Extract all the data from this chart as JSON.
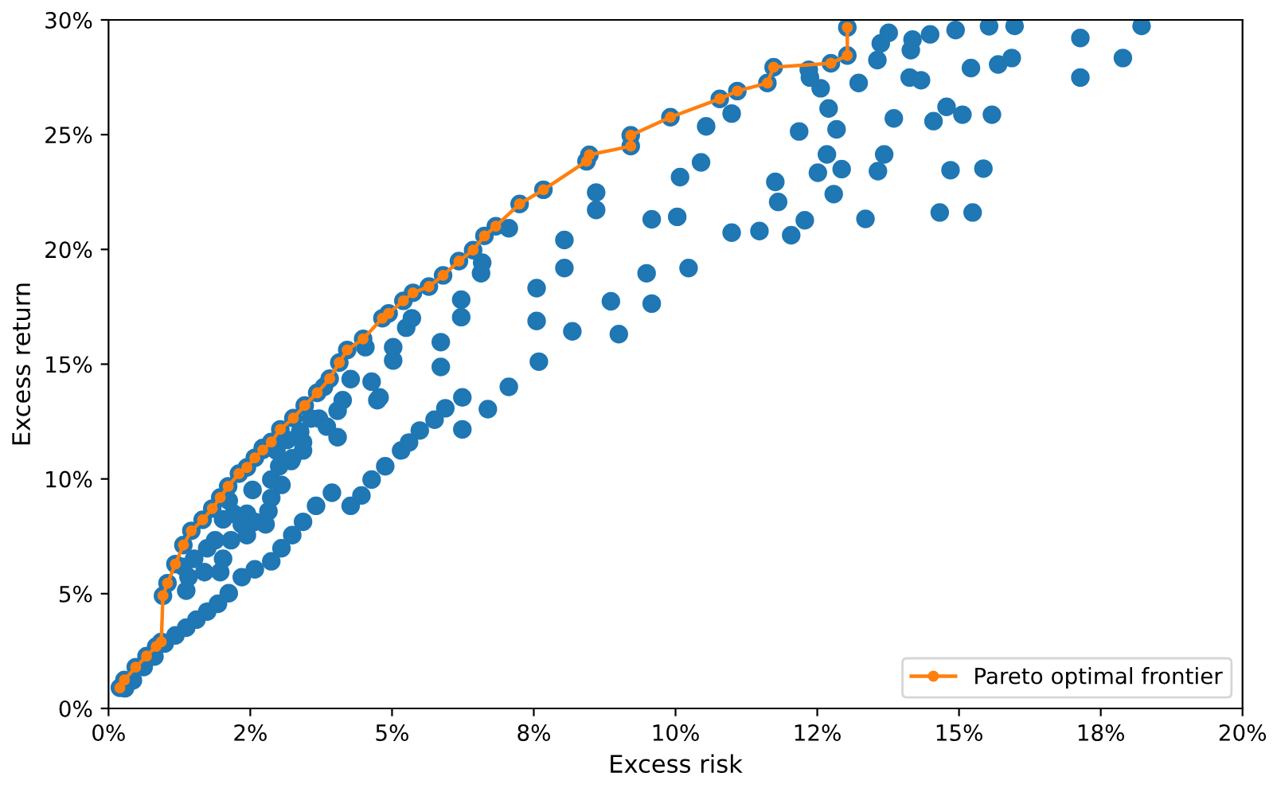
{
  "chart_data": {
    "type": "scatter",
    "xlabel": "Excess risk",
    "ylabel": "Excess return",
    "xlim": [
      0,
      20
    ],
    "ylim": [
      0,
      30
    ],
    "xticks": [
      {
        "value": 0,
        "label": "0%"
      },
      {
        "value": 2.5,
        "label": "2%"
      },
      {
        "value": 5,
        "label": "5%"
      },
      {
        "value": 7.5,
        "label": "8%"
      },
      {
        "value": 10,
        "label": "10%"
      },
      {
        "value": 12.5,
        "label": "12%"
      },
      {
        "value": 15,
        "label": "15%"
      },
      {
        "value": 17.5,
        "label": "18%"
      },
      {
        "value": 20,
        "label": "20%"
      }
    ],
    "yticks": [
      {
        "value": 0,
        "label": "0%"
      },
      {
        "value": 5,
        "label": "5%"
      },
      {
        "value": 10,
        "label": "10%"
      },
      {
        "value": 15,
        "label": "15%"
      },
      {
        "value": 20,
        "label": "20%"
      },
      {
        "value": 25,
        "label": "25%"
      },
      {
        "value": 30,
        "label": "30%"
      }
    ],
    "grid": false,
    "legend": "bottom right",
    "series": [
      {
        "color": "#1f77b4",
        "marker": "circle",
        "x": [
          0.29,
          0.43,
          0.62,
          0.81,
          0.99,
          1.18,
          1.37,
          1.55,
          1.74,
          1.93,
          2.12,
          2.35,
          2.58,
          2.87,
          3.05,
          3.24,
          3.43,
          3.66,
          3.94,
          4.27,
          4.46,
          4.64,
          4.88,
          5.16,
          5.3,
          5.49,
          5.75,
          5.94,
          6.24,
          6.24,
          6.69,
          7.06,
          7.59,
          7.55,
          8.18,
          8.04,
          9.0,
          8.86,
          9.58,
          9.49,
          10.23,
          1.37,
          1.41,
          1.32,
          1.51,
          1.74,
          1.88,
          2.02,
          1.97,
          1.69,
          2.16,
          2.35,
          2.21,
          2.44,
          2.58,
          2.44,
          2.82,
          2.77,
          2.87,
          3.05,
          2.54,
          2.12,
          2.02,
          3.24,
          3.15,
          3.43,
          3.38,
          3.71,
          4.04,
          4.04,
          3.8,
          4.13,
          4.27,
          4.64,
          4.74,
          2.87,
          3.01,
          2.72,
          2.96,
          3.57,
          3.85,
          3.43,
          3.22,
          4.53,
          5.02,
          5.02,
          4.78,
          5.25,
          5.35,
          5.86,
          5.86,
          6.22,
          6.22,
          6.57,
          6.59,
          7.06,
          7.55,
          8.6,
          8.6,
          8.04,
          9.58,
          10.03,
          10.08,
          10.45,
          10.54,
          10.99,
          10.99,
          11.48,
          11.76,
          11.81,
          12.04,
          12.28,
          12.35,
          12.37,
          12.56,
          13.23,
          12.7,
          12.84,
          12.18,
          12.67,
          12.51,
          12.93,
          12.79,
          13.35,
          13.56,
          13.62,
          13.76,
          14.15,
          14.18,
          14.13,
          14.33,
          14.49,
          14.94,
          15.53,
          15.98,
          17.14,
          18.22,
          15.21,
          15.69,
          15.93,
          17.14,
          17.89,
          13.85,
          14.55,
          14.78,
          15.06,
          15.58,
          13.68,
          13.57,
          14.85,
          15.43,
          14.66,
          15.24,
          0.2,
          0.28,
          0.48,
          0.67,
          0.84,
          0.93,
          0.96,
          1.04,
          1.18,
          1.32,
          1.46,
          1.66,
          1.83,
          1.97,
          2.11,
          2.3,
          2.44,
          2.58,
          2.72,
          2.87,
          3.03,
          3.26,
          3.46,
          3.68,
          3.9,
          4.07,
          4.21,
          4.49,
          4.83,
          4.94,
          5.2,
          5.37,
          5.65,
          5.9,
          6.18,
          6.43,
          6.63,
          6.83,
          7.25,
          7.67,
          8.43,
          8.48,
          9.21,
          9.21,
          9.91,
          10.78,
          11.09,
          11.62,
          11.73,
          12.74,
          13.03,
          13.03
        ],
        "values": [
          0.88,
          1.22,
          1.8,
          2.26,
          2.83,
          3.18,
          3.52,
          3.87,
          4.22,
          4.56,
          5.02,
          5.72,
          6.06,
          6.41,
          6.98,
          7.55,
          8.13,
          8.83,
          9.4,
          8.83,
          9.28,
          9.97,
          10.55,
          11.24,
          11.59,
          12.11,
          12.58,
          13.08,
          13.55,
          12.16,
          13.04,
          14.01,
          15.11,
          16.88,
          16.43,
          19.19,
          16.31,
          17.74,
          17.64,
          18.96,
          19.19,
          5.13,
          5.72,
          6.17,
          6.52,
          6.98,
          7.33,
          6.52,
          5.94,
          5.94,
          7.33,
          8.02,
          8.48,
          8.48,
          8.13,
          7.55,
          8.59,
          8.02,
          9.17,
          9.74,
          9.52,
          9.05,
          8.24,
          10.9,
          11.7,
          11.24,
          12.05,
          12.63,
          11.82,
          12.97,
          14.01,
          13.43,
          14.35,
          14.24,
          13.43,
          9.97,
          10.55,
          11.35,
          11.24,
          12.63,
          12.28,
          11.59,
          10.78,
          15.74,
          15.74,
          15.16,
          13.55,
          16.59,
          17.0,
          15.96,
          14.88,
          17.81,
          17.05,
          18.96,
          19.42,
          20.92,
          18.31,
          22.48,
          21.72,
          20.41,
          21.31,
          21.42,
          23.15,
          23.79,
          25.36,
          25.92,
          20.73,
          20.8,
          22.94,
          22.07,
          20.62,
          21.27,
          27.83,
          27.49,
          27.02,
          27.25,
          26.14,
          25.23,
          25.14,
          24.14,
          23.34,
          23.5,
          22.41,
          21.33,
          28.25,
          28.98,
          29.44,
          28.68,
          29.14,
          27.49,
          27.37,
          29.37,
          29.56,
          29.72,
          29.74,
          29.21,
          29.74,
          27.9,
          28.06,
          28.34,
          27.49,
          28.34,
          25.71,
          25.59,
          26.21,
          25.87,
          25.87,
          24.14,
          23.41,
          23.45,
          23.52,
          21.61,
          21.61,
          0.9,
          1.24,
          1.8,
          2.28,
          2.7,
          2.9,
          4.91,
          5.46,
          6.29,
          7.12,
          7.74,
          8.22,
          8.71,
          9.19,
          9.68,
          10.23,
          10.5,
          10.92,
          11.26,
          11.61,
          12.16,
          12.65,
          13.2,
          13.75,
          14.37,
          15.07,
          15.62,
          16.1,
          17.0,
          17.21,
          17.76,
          18.11,
          18.38,
          18.87,
          19.49,
          19.97,
          20.59,
          21.01,
          21.98,
          22.6,
          23.84,
          24.12,
          24.5,
          24.97,
          25.76,
          26.56,
          26.9,
          27.25,
          27.94,
          28.11,
          28.45,
          29.67
        ]
      },
      {
        "type": "line",
        "name": "Pareto optimal frontier",
        "color": "#ff7f0e",
        "marker": "circle",
        "line_style": "solid",
        "x": [
          0.2,
          0.28,
          0.48,
          0.67,
          0.84,
          0.93,
          0.96,
          1.04,
          1.18,
          1.32,
          1.46,
          1.66,
          1.83,
          1.97,
          2.11,
          2.3,
          2.44,
          2.58,
          2.72,
          2.87,
          3.03,
          3.26,
          3.46,
          3.68,
          3.9,
          4.07,
          4.21,
          4.49,
          4.83,
          4.94,
          5.2,
          5.37,
          5.65,
          5.9,
          6.18,
          6.43,
          6.63,
          6.83,
          7.25,
          7.67,
          8.43,
          8.48,
          9.21,
          9.21,
          9.91,
          10.78,
          11.09,
          11.62,
          11.73,
          12.74,
          13.03,
          13.03
        ],
        "values": [
          0.9,
          1.24,
          1.8,
          2.28,
          2.7,
          2.9,
          4.91,
          5.46,
          6.29,
          7.12,
          7.74,
          8.22,
          8.71,
          9.19,
          9.68,
          10.23,
          10.5,
          10.92,
          11.26,
          11.61,
          12.16,
          12.65,
          13.2,
          13.75,
          14.37,
          15.07,
          15.62,
          16.1,
          17.0,
          17.21,
          17.76,
          18.11,
          18.38,
          18.87,
          19.49,
          19.97,
          20.59,
          21.01,
          21.98,
          22.6,
          23.84,
          24.12,
          24.5,
          24.97,
          25.76,
          26.56,
          26.9,
          27.25,
          27.94,
          28.11,
          28.45,
          29.67
        ]
      }
    ]
  }
}
